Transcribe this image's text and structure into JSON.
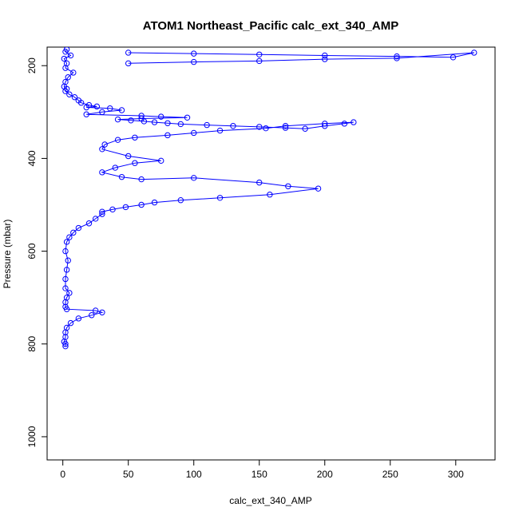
{
  "chart_data": {
    "type": "scatter",
    "title": "ATOM1 Northeast_Pacific calc_ext_340_AMP",
    "xlabel": "calc_ext_340_AMP",
    "ylabel": "Pressure (mbar)",
    "xlim": [
      -12,
      330
    ],
    "ylim": [
      1050,
      160
    ],
    "y_reversed": true,
    "grid": false,
    "legend": "none",
    "x_ticks": [
      0,
      50,
      100,
      150,
      200,
      250,
      300
    ],
    "y_ticks": [
      200,
      400,
      600,
      800,
      1000
    ],
    "marker": "open-circle",
    "connected": true,
    "series_color": "#0000ff",
    "series": [
      {
        "x": [
          3,
          2,
          6,
          1,
          3,
          2,
          8,
          4,
          2,
          1,
          3,
          2,
          5,
          9,
          12,
          14,
          20,
          26,
          18,
          36,
          45,
          30,
          18,
          60,
          75,
          95,
          60,
          42,
          52,
          62,
          70,
          80,
          90,
          110,
          130,
          150,
          170,
          185,
          200,
          215,
          222,
          200,
          170,
          155,
          120,
          100,
          80,
          55,
          42,
          32,
          30,
          50,
          75,
          55,
          40,
          30,
          45,
          60,
          100,
          150,
          172,
          195,
          158,
          120,
          90,
          70,
          60,
          48,
          38,
          30,
          30,
          25,
          20,
          12,
          8,
          5,
          3,
          2,
          4,
          3,
          2,
          2,
          5,
          3,
          2,
          2,
          3,
          25,
          30,
          22,
          12,
          6,
          3,
          2,
          2,
          1,
          2,
          2
        ],
        "y": [
          165,
          170,
          178,
          185,
          195,
          205,
          215,
          225,
          235,
          245,
          250,
          255,
          262,
          268,
          275,
          280,
          285,
          288,
          290,
          292,
          296,
          300,
          305,
          308,
          310,
          312,
          314,
          316,
          318,
          320,
          322,
          324,
          326,
          328,
          330,
          332,
          334,
          336,
          330,
          325,
          322,
          325,
          330,
          335,
          340,
          345,
          350,
          355,
          360,
          370,
          380,
          395,
          405,
          410,
          420,
          430,
          440,
          445,
          442,
          452,
          460,
          465,
          478,
          485,
          490,
          495,
          500,
          505,
          510,
          515,
          520,
          530,
          540,
          550,
          560,
          570,
          580,
          600,
          620,
          640,
          660,
          680,
          690,
          700,
          710,
          720,
          725,
          728,
          732,
          738,
          745,
          755,
          765,
          775,
          785,
          795,
          800,
          805
        ]
      },
      {
        "x": [
          50,
          100,
          150,
          200,
          255,
          298,
          314,
          255,
          200,
          150,
          100,
          50
        ],
        "y": [
          172,
          174,
          176,
          178,
          180,
          182,
          172,
          184,
          186,
          190,
          192,
          195
        ]
      }
    ]
  }
}
